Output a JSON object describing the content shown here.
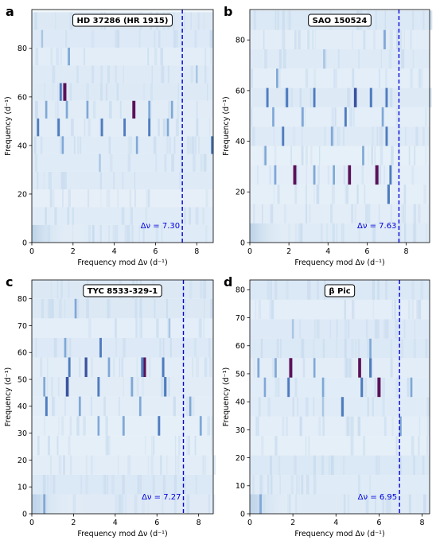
{
  "chart_data": [
    {
      "type": "heatmap",
      "panel_letter": "a",
      "title": "HD 37286 (HR 1915)",
      "xlabel": "Frequency mod Δν (d⁻¹)",
      "ylabel": "Frequency (d⁻¹)",
      "xlim": [
        0,
        8.8
      ],
      "ylim": [
        0,
        96
      ],
      "xticks": [
        0,
        2,
        4,
        6,
        8
      ],
      "yticks": [
        0,
        20,
        40,
        60,
        80
      ],
      "delta_nu": 7.3,
      "delta_nu_label": "Δν = 7.30",
      "band_count": 13,
      "peaks": [
        {
          "x": 1.6,
          "y": 62.1,
          "intensity": 1.0
        },
        {
          "x": 1.4,
          "y": 62.1,
          "intensity": 0.45
        },
        {
          "x": 4.95,
          "y": 54.8,
          "intensity": 0.95
        },
        {
          "x": 0.7,
          "y": 54.8,
          "intensity": 0.3
        },
        {
          "x": 1.7,
          "y": 54.8,
          "intensity": 0.35
        },
        {
          "x": 2.7,
          "y": 54.8,
          "intensity": 0.3
        },
        {
          "x": 5.7,
          "y": 54.8,
          "intensity": 0.35
        },
        {
          "x": 6.8,
          "y": 54.8,
          "intensity": 0.3
        },
        {
          "x": 0.3,
          "y": 47.5,
          "intensity": 0.45
        },
        {
          "x": 1.3,
          "y": 47.5,
          "intensity": 0.5
        },
        {
          "x": 3.4,
          "y": 47.5,
          "intensity": 0.45
        },
        {
          "x": 4.5,
          "y": 47.5,
          "intensity": 0.45
        },
        {
          "x": 5.7,
          "y": 47.5,
          "intensity": 0.45
        },
        {
          "x": 6.6,
          "y": 47.5,
          "intensity": 0.35
        },
        {
          "x": 1.5,
          "y": 40.2,
          "intensity": 0.3
        },
        {
          "x": 5.1,
          "y": 40.2,
          "intensity": 0.3
        },
        {
          "x": 8.75,
          "y": 40.2,
          "intensity": 0.55
        },
        {
          "x": 1.8,
          "y": 76.7,
          "intensity": 0.35
        },
        {
          "x": 8.0,
          "y": 69.4,
          "intensity": 0.25
        },
        {
          "x": 0.5,
          "y": 84.0,
          "intensity": 0.2
        },
        {
          "x": 3.3,
          "y": 32.9,
          "intensity": 0.2
        }
      ]
    },
    {
      "type": "heatmap",
      "panel_letter": "b",
      "title": "SAO 150524",
      "xlabel": "Frequency mod Δν (d⁻¹)",
      "ylabel": "Frequency (d⁻¹)",
      "xlim": [
        0,
        9.2
      ],
      "ylim": [
        0,
        92
      ],
      "xticks": [
        0,
        2,
        4,
        6,
        8
      ],
      "yticks": [
        0,
        20,
        40,
        60,
        80
      ],
      "delta_nu": 7.63,
      "delta_nu_label": "Δν = 7.63",
      "band_count": 12,
      "peaks": [
        {
          "x": 2.3,
          "y": 26.7,
          "intensity": 0.95
        },
        {
          "x": 5.1,
          "y": 26.7,
          "intensity": 0.85
        },
        {
          "x": 6.5,
          "y": 26.7,
          "intensity": 1.0
        },
        {
          "x": 1.3,
          "y": 26.7,
          "intensity": 0.4
        },
        {
          "x": 3.3,
          "y": 26.7,
          "intensity": 0.4
        },
        {
          "x": 4.3,
          "y": 26.7,
          "intensity": 0.35
        },
        {
          "x": 7.2,
          "y": 26.7,
          "intensity": 0.45
        },
        {
          "x": 0.9,
          "y": 57.2,
          "intensity": 0.45
        },
        {
          "x": 1.9,
          "y": 57.2,
          "intensity": 0.55
        },
        {
          "x": 3.3,
          "y": 57.2,
          "intensity": 0.45
        },
        {
          "x": 5.4,
          "y": 57.2,
          "intensity": 0.8
        },
        {
          "x": 6.2,
          "y": 57.2,
          "intensity": 0.55
        },
        {
          "x": 7.0,
          "y": 57.2,
          "intensity": 0.45
        },
        {
          "x": 1.2,
          "y": 49.6,
          "intensity": 0.35
        },
        {
          "x": 2.7,
          "y": 49.6,
          "intensity": 0.4
        },
        {
          "x": 4.9,
          "y": 49.6,
          "intensity": 0.45
        },
        {
          "x": 6.8,
          "y": 49.6,
          "intensity": 0.35
        },
        {
          "x": 1.7,
          "y": 42.0,
          "intensity": 0.45
        },
        {
          "x": 4.2,
          "y": 42.0,
          "intensity": 0.35
        },
        {
          "x": 7.0,
          "y": 42.0,
          "intensity": 0.45
        },
        {
          "x": 0.8,
          "y": 34.3,
          "intensity": 0.3
        },
        {
          "x": 5.8,
          "y": 34.3,
          "intensity": 0.35
        },
        {
          "x": 7.1,
          "y": 19.1,
          "intensity": 0.55
        },
        {
          "x": 1.4,
          "y": 64.8,
          "intensity": 0.35
        },
        {
          "x": 3.8,
          "y": 72.4,
          "intensity": 0.25
        },
        {
          "x": 6.9,
          "y": 80.1,
          "intensity": 0.3
        }
      ]
    },
    {
      "type": "heatmap",
      "panel_letter": "c",
      "title": "TYC 8533-329-1",
      "xlabel": "Frequency mod Δν (d⁻¹)",
      "ylabel": "Frequency (d⁻¹)",
      "xlim": [
        0,
        8.7
      ],
      "ylim": [
        0,
        87
      ],
      "xticks": [
        0,
        2,
        4,
        6,
        8
      ],
      "yticks": [
        0,
        10,
        20,
        30,
        40,
        50,
        60,
        70,
        80
      ],
      "delta_nu": 7.27,
      "delta_nu_label": "Δν = 7.27",
      "band_count": 12,
      "peaks": [
        {
          "x": 5.4,
          "y": 54.5,
          "intensity": 1.0
        },
        {
          "x": 5.3,
          "y": 54.5,
          "intensity": 0.6
        },
        {
          "x": 1.7,
          "y": 47.2,
          "intensity": 0.8
        },
        {
          "x": 1.8,
          "y": 54.5,
          "intensity": 0.45
        },
        {
          "x": 2.6,
          "y": 54.5,
          "intensity": 0.65
        },
        {
          "x": 3.7,
          "y": 54.5,
          "intensity": 0.35
        },
        {
          "x": 6.3,
          "y": 54.5,
          "intensity": 0.5
        },
        {
          "x": 0.6,
          "y": 47.2,
          "intensity": 0.35
        },
        {
          "x": 3.2,
          "y": 47.2,
          "intensity": 0.45
        },
        {
          "x": 4.8,
          "y": 47.2,
          "intensity": 0.35
        },
        {
          "x": 6.4,
          "y": 47.2,
          "intensity": 0.6
        },
        {
          "x": 3.3,
          "y": 61.8,
          "intensity": 0.45
        },
        {
          "x": 1.6,
          "y": 61.8,
          "intensity": 0.3
        },
        {
          "x": 0.7,
          "y": 39.9,
          "intensity": 0.45
        },
        {
          "x": 2.3,
          "y": 39.9,
          "intensity": 0.35
        },
        {
          "x": 5.2,
          "y": 39.9,
          "intensity": 0.35
        },
        {
          "x": 7.6,
          "y": 39.9,
          "intensity": 0.3
        },
        {
          "x": 3.2,
          "y": 32.6,
          "intensity": 0.3
        },
        {
          "x": 4.4,
          "y": 32.6,
          "intensity": 0.4
        },
        {
          "x": 6.1,
          "y": 32.6,
          "intensity": 0.45
        },
        {
          "x": 8.1,
          "y": 32.6,
          "intensity": 0.4
        },
        {
          "x": 2.1,
          "y": 76.4,
          "intensity": 0.35
        },
        {
          "x": 6.6,
          "y": 69.1,
          "intensity": 0.25
        },
        {
          "x": 0.6,
          "y": 3.6,
          "intensity": 0.4
        }
      ]
    },
    {
      "type": "heatmap",
      "panel_letter": "d",
      "title": "β Pic",
      "xlabel": "Frequency mod Δν (d⁻¹)",
      "ylabel": "Frequency (d⁻¹)",
      "xlim": [
        0,
        8.35
      ],
      "ylim": [
        0,
        83.5
      ],
      "xticks": [
        0,
        2,
        4,
        6,
        8
      ],
      "yticks": [
        0,
        10,
        20,
        30,
        40,
        50,
        60,
        70,
        80
      ],
      "delta_nu": 6.95,
      "delta_nu_label": "Δν = 6.95",
      "band_count": 12,
      "peaks": [
        {
          "x": 1.9,
          "y": 52.1,
          "intensity": 0.95
        },
        {
          "x": 5.1,
          "y": 52.1,
          "intensity": 0.85
        },
        {
          "x": 5.6,
          "y": 52.1,
          "intensity": 0.5
        },
        {
          "x": 0.4,
          "y": 52.1,
          "intensity": 0.4
        },
        {
          "x": 1.2,
          "y": 52.1,
          "intensity": 0.35
        },
        {
          "x": 3.0,
          "y": 52.1,
          "intensity": 0.3
        },
        {
          "x": 6.0,
          "y": 45.2,
          "intensity": 1.0
        },
        {
          "x": 1.8,
          "y": 45.2,
          "intensity": 0.45
        },
        {
          "x": 3.4,
          "y": 45.2,
          "intensity": 0.3
        },
        {
          "x": 5.2,
          "y": 45.2,
          "intensity": 0.55
        },
        {
          "x": 0.7,
          "y": 45.2,
          "intensity": 0.3
        },
        {
          "x": 7.5,
          "y": 45.2,
          "intensity": 0.35
        },
        {
          "x": 4.3,
          "y": 38.2,
          "intensity": 0.55
        },
        {
          "x": 3.4,
          "y": 38.2,
          "intensity": 0.25
        },
        {
          "x": 5.6,
          "y": 59.1,
          "intensity": 0.3
        },
        {
          "x": 7.0,
          "y": 31.3,
          "intensity": 0.35
        },
        {
          "x": 0.5,
          "y": 3.5,
          "intensity": 0.4
        },
        {
          "x": 2.0,
          "y": 66.0,
          "intensity": 0.25
        }
      ]
    }
  ]
}
